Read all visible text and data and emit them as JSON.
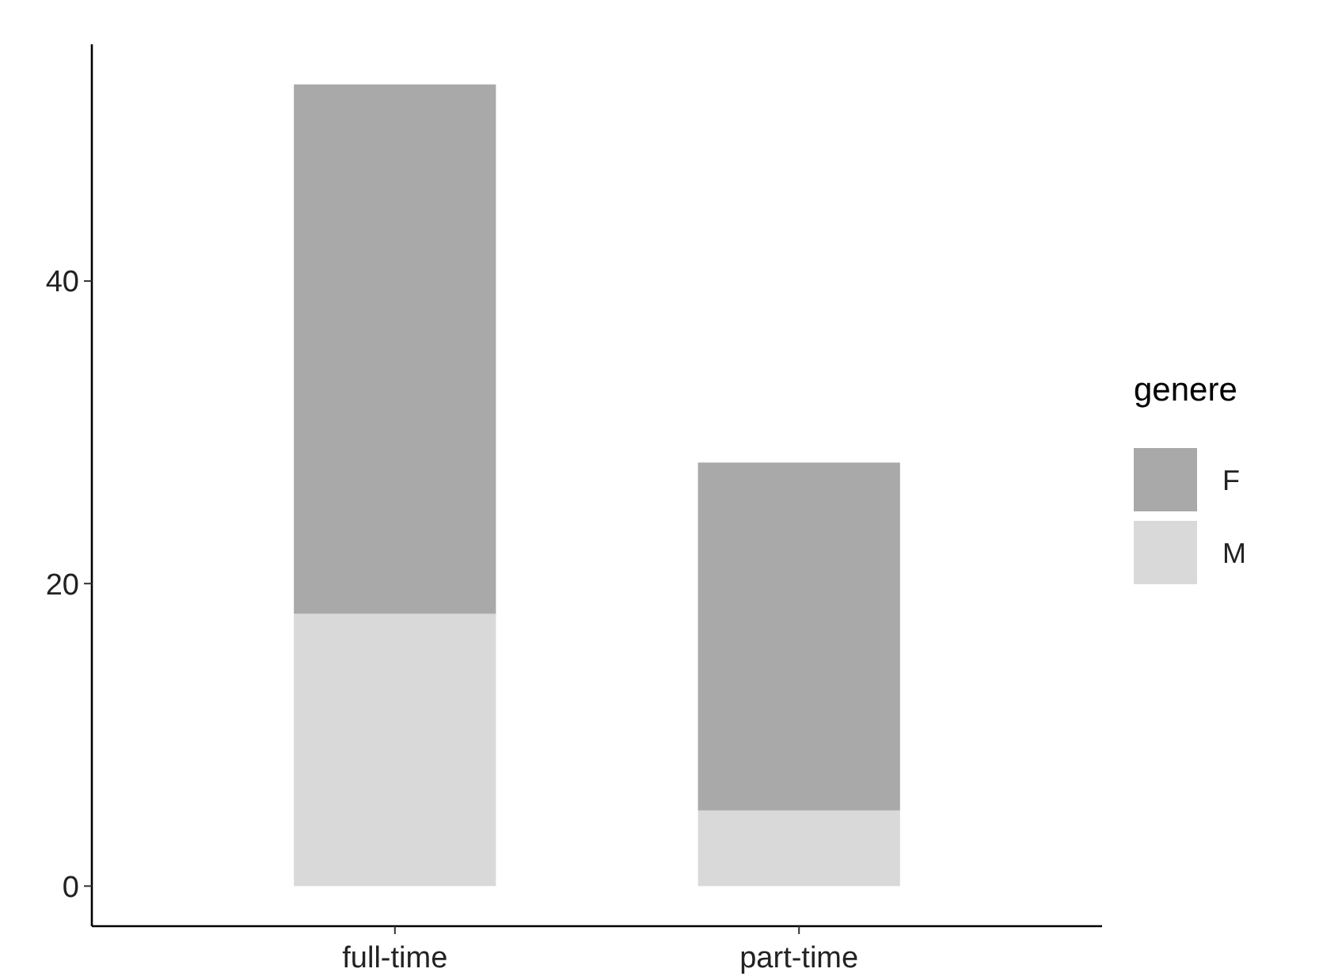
{
  "chart_data": {
    "type": "bar",
    "stacked": true,
    "categories": [
      "full-time",
      "part-time"
    ],
    "series": [
      {
        "name": "M",
        "color": "#d9d9d9",
        "values": [
          18,
          5
        ]
      },
      {
        "name": "F",
        "color": "#a9a9a9",
        "values": [
          35,
          23
        ]
      }
    ],
    "legend_title": "genere",
    "legend": "right",
    "ylim": [
      -2.65,
      55.65
    ],
    "yticks": [
      0,
      20,
      40
    ],
    "grid": false
  }
}
